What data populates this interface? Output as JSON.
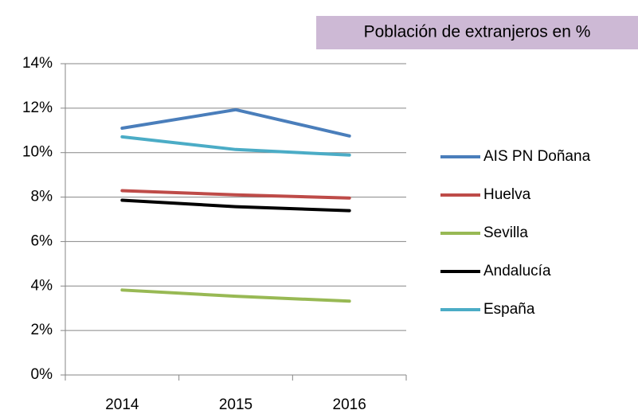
{
  "chart_data": {
    "type": "line",
    "title": "Población de extranjeros en %",
    "categories": [
      "2014",
      "2015",
      "2016"
    ],
    "series": [
      {
        "name": "AIS PN Doñana",
        "color": "#4a7ebb",
        "values": [
          11.1,
          11.93,
          10.75
        ]
      },
      {
        "name": "Huelva",
        "color": "#be4b48",
        "values": [
          8.29,
          8.1,
          7.96
        ]
      },
      {
        "name": "Sevilla",
        "color": "#98b954",
        "values": [
          3.82,
          3.54,
          3.32
        ]
      },
      {
        "name": "Andalucía",
        "color": "#000000",
        "values": [
          7.86,
          7.57,
          7.39
        ]
      },
      {
        "name": "España",
        "color": "#4bacc6",
        "values": [
          10.71,
          10.14,
          9.89
        ]
      }
    ],
    "ylim": [
      0,
      14
    ],
    "yticks": [
      {
        "value": 0,
        "label": "0%"
      },
      {
        "value": 2,
        "label": "2%"
      },
      {
        "value": 4,
        "label": "4%"
      },
      {
        "value": 6,
        "label": "6%"
      },
      {
        "value": 8,
        "label": "8%"
      },
      {
        "value": 10,
        "label": "10%"
      },
      {
        "value": 12,
        "label": "12%"
      },
      {
        "value": 14,
        "label": "14%"
      }
    ],
    "grid": true,
    "legend": "right"
  }
}
